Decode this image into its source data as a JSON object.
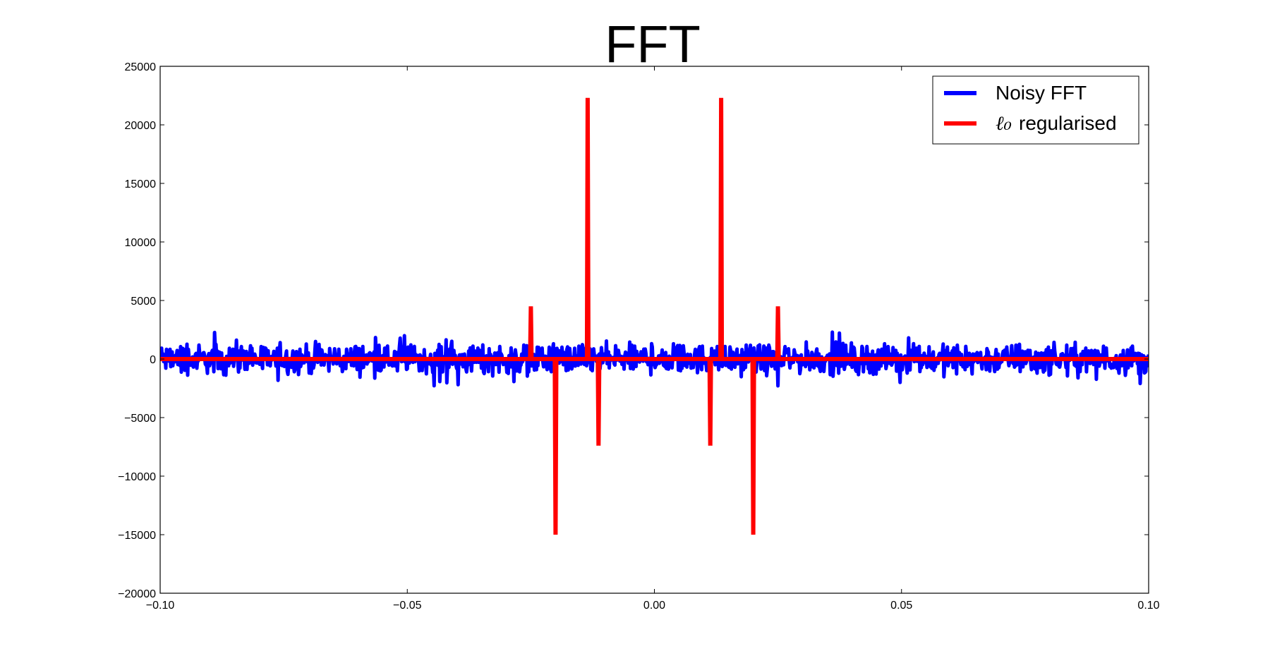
{
  "chart_data": {
    "type": "line",
    "title": "FFT",
    "xlabel": "",
    "ylabel": "",
    "xlim": [
      -0.1,
      0.1
    ],
    "ylim": [
      -20000,
      25000
    ],
    "x_ticks": [
      "−0.10",
      "−0.05",
      "0.00",
      "0.05",
      "0.10"
    ],
    "x_tick_values": [
      -0.1,
      -0.05,
      0.0,
      0.05,
      0.1
    ],
    "y_ticks": [
      "−20000",
      "−15000",
      "−10000",
      "−5000",
      "0",
      "5000",
      "10000",
      "15000",
      "20000",
      "25000"
    ],
    "y_tick_values": [
      -20000,
      -15000,
      -10000,
      -5000,
      0,
      5000,
      10000,
      15000,
      20000,
      25000
    ],
    "grid": false,
    "legend_position": "top-right",
    "series": [
      {
        "name": "Noisy FFT",
        "color": "#0000ff",
        "style": "noise",
        "x_range": [
          -0.1,
          0.1
        ],
        "amplitude_typical": 600,
        "amplitude_max": 2300
      },
      {
        "name": "regularised",
        "name_math_prefix": "ℓ₀",
        "color": "#ff0000",
        "style": "spikes",
        "baseline": 0,
        "spikes": [
          {
            "x": -0.025,
            "y": 4500
          },
          {
            "x": -0.02,
            "y": -15000
          },
          {
            "x": -0.0135,
            "y": 22300
          },
          {
            "x": -0.0113,
            "y": -7400
          },
          {
            "x": 0.0113,
            "y": -7400
          },
          {
            "x": 0.0135,
            "y": 22300
          },
          {
            "x": 0.02,
            "y": -15000
          },
          {
            "x": 0.025,
            "y": 4500
          }
        ]
      }
    ]
  }
}
